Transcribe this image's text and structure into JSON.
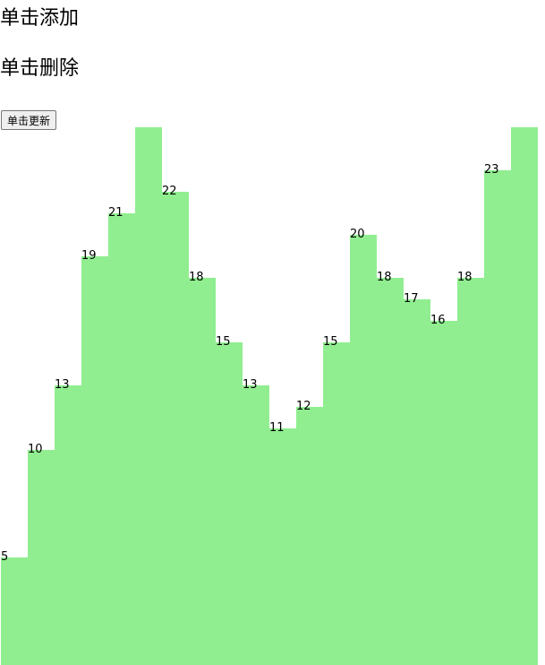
{
  "page": {
    "add_heading": "单击添加",
    "delete_heading": "单击删除",
    "update_button": "单击更新"
  },
  "colors": {
    "bar": "#90ee90",
    "label": "#000000"
  },
  "chart_data": {
    "type": "bar",
    "title": "",
    "xlabel": "",
    "ylabel": "",
    "values": [
      5,
      10,
      13,
      19,
      21,
      25,
      22,
      18,
      15,
      13,
      11,
      12,
      15,
      20,
      18,
      17,
      16,
      18,
      23,
      25
    ],
    "labels": [
      "5",
      "10",
      "13",
      "19",
      "21",
      "",
      "22",
      "18",
      "15",
      "13",
      "11",
      "12",
      "15",
      "20",
      "18",
      "17",
      "16",
      "18",
      "23",
      ""
    ]
  }
}
